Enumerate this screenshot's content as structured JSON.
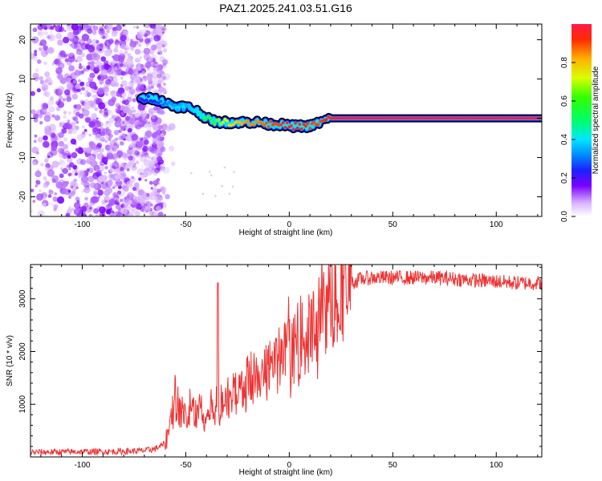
{
  "figure": {
    "title": "PAZ1.2025.241.03.51.G16"
  },
  "chart_data": [
    {
      "type": "heatmap",
      "title": "PAZ1.2025.241.03.51.G16",
      "xlabel": "Height of straight line (km)",
      "ylabel": "Frequency (Hz)",
      "xlim": [
        -125,
        122
      ],
      "ylim": [
        -25,
        24
      ],
      "xticks": [
        -100,
        -50,
        0,
        50,
        100
      ],
      "yticks": [
        -20,
        -10,
        0,
        10,
        20
      ],
      "xticklabels": [
        "-100",
        "-50",
        "0",
        "50",
        "100"
      ],
      "yticklabels": [
        "-20",
        "-10",
        "0",
        "10",
        "20"
      ],
      "ridge": {
        "x": [
          -72,
          -65,
          -60,
          -55,
          -50,
          -45,
          -40,
          -35,
          -30,
          -25,
          -20,
          -15,
          -10,
          -5,
          0,
          5,
          10,
          15,
          20,
          25,
          30,
          40,
          50,
          60,
          70,
          80,
          100,
          122
        ],
        "y": [
          5,
          5,
          4,
          3,
          3,
          2,
          0,
          -1,
          -1,
          -1,
          -1,
          -1,
          -1.5,
          -1.5,
          -2,
          -2,
          -2,
          -1,
          0,
          0,
          0,
          0,
          0,
          0,
          0,
          0,
          0,
          0
        ],
        "amplitude": [
          0.2,
          0.25,
          0.3,
          0.35,
          0.35,
          0.4,
          0.55,
          0.65,
          0.75,
          0.8,
          0.85,
          0.85,
          0.9,
          0.9,
          0.95,
          0.95,
          0.9,
          0.9,
          0.95,
          1,
          1,
          1,
          1,
          1,
          1,
          1,
          1,
          1
        ]
      },
      "colorbar": {
        "label": "Normalized spectral amplitude",
        "range": [
          0,
          1
        ],
        "ticks": [
          0.0,
          0.2,
          0.4,
          0.6,
          0.8
        ],
        "ticklabels": [
          "0.0",
          "0.2",
          "0.4",
          "0.6",
          "0.8"
        ]
      }
    },
    {
      "type": "line",
      "xlabel": "Height of straight line (km)",
      "ylabel": "SNR (10 * v/v)",
      "xlim": [
        -125,
        122
      ],
      "ylim": [
        0,
        3650
      ],
      "xticks": [
        -100,
        -50,
        0,
        50,
        100
      ],
      "yticks": [
        1000,
        2000,
        3000
      ],
      "xticklabels": [
        "-100",
        "-50",
        "0",
        "50",
        "100"
      ],
      "yticklabels": [
        "1000",
        "2000",
        "3000"
      ],
      "series": [
        {
          "name": "SNR",
          "color": "#ee3333",
          "x": [
            -125,
            -110,
            -100,
            -90,
            -80,
            -70,
            -65,
            -60,
            -57,
            -55,
            -52,
            -50,
            -47,
            -45,
            -42,
            -40,
            -38,
            -36,
            -34,
            -32,
            -30,
            -28,
            -25,
            -22,
            -20,
            -18,
            -15,
            -12,
            -10,
            -5,
            0,
            5,
            10,
            15,
            20,
            25,
            30,
            35,
            40,
            50,
            60,
            70,
            80,
            90,
            100,
            110,
            122
          ],
          "values": [
            90,
            95,
            100,
            100,
            105,
            120,
            150,
            250,
            700,
            1100,
            850,
            750,
            900,
            850,
            900,
            750,
            900,
            1000,
            950,
            1050,
            1150,
            1100,
            1300,
            1350,
            1400,
            1450,
            1550,
            1600,
            1700,
            1850,
            2000,
            2150,
            2350,
            2650,
            2950,
            3150,
            3300,
            3380,
            3400,
            3400,
            3400,
            3400,
            3380,
            3350,
            3330,
            3300,
            3300
          ]
        }
      ]
    }
  ]
}
